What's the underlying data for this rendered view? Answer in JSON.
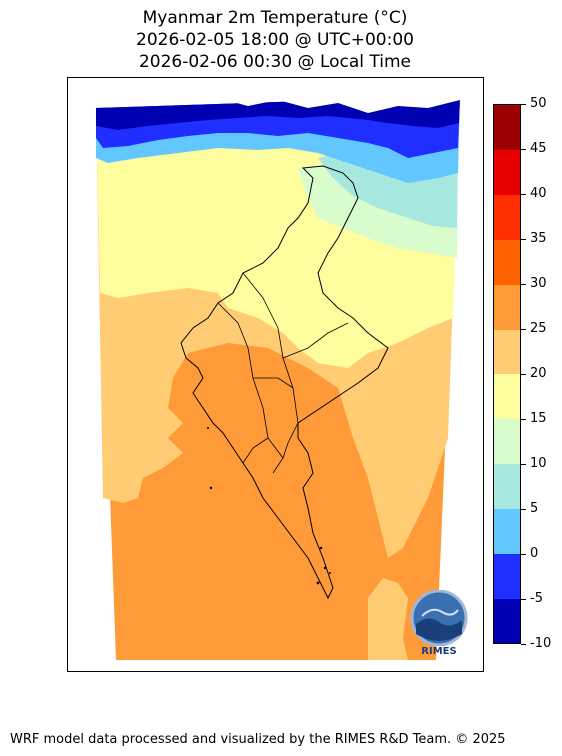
{
  "title": {
    "line1": "Myanmar 2m Temperature (°C)",
    "line2": "2026-02-05 18:00 @ UTC+00:00",
    "line3": "2026-02-06 00:30 @ Local Time"
  },
  "colorbar": {
    "levels": [
      {
        "from": -10,
        "to": -5,
        "color": "#0000b3"
      },
      {
        "from": -5,
        "to": 0,
        "color": "#1f2fff"
      },
      {
        "from": 0,
        "to": 5,
        "color": "#63c7ff"
      },
      {
        "from": 5,
        "to": 10,
        "color": "#a6e8df"
      },
      {
        "from": 10,
        "to": 15,
        "color": "#d9fccc"
      },
      {
        "from": 15,
        "to": 20,
        "color": "#fffe9e"
      },
      {
        "from": 20,
        "to": 25,
        "color": "#ffcc73"
      },
      {
        "from": 25,
        "to": 30,
        "color": "#fe9a38"
      },
      {
        "from": 30,
        "to": 35,
        "color": "#ff6000"
      },
      {
        "from": 35,
        "to": 40,
        "color": "#ff2f00"
      },
      {
        "from": 40,
        "to": 45,
        "color": "#e80000"
      },
      {
        "from": 45,
        "to": 50,
        "color": "#9d0000"
      }
    ],
    "tick_labels": [
      "-10",
      "-5",
      "0",
      "5",
      "10",
      "15",
      "20",
      "25",
      "30",
      "35",
      "40",
      "45",
      "50"
    ]
  },
  "logo_text": "RIMES",
  "footer": "WRF model data processed and visualized by the RIMES R&D Team. © 2025"
}
